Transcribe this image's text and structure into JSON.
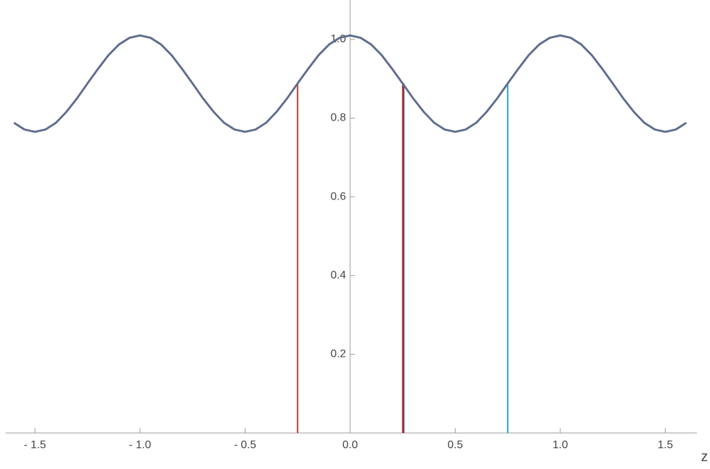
{
  "chart_data": {
    "type": "line",
    "x_label": "z",
    "x": [
      -1.6,
      -1.55,
      -1.5,
      -1.45,
      -1.4,
      -1.35,
      -1.3,
      -1.25,
      -1.2,
      -1.15,
      -1.1,
      -1.05,
      -1.0,
      -0.95,
      -0.9,
      -0.85,
      -0.8,
      -0.75,
      -0.7,
      -0.65,
      -0.6,
      -0.55,
      -0.5,
      -0.45,
      -0.4,
      -0.35,
      -0.3,
      -0.25,
      -0.2,
      -0.15,
      -0.1,
      -0.05,
      0,
      0.05,
      0.1,
      0.15,
      0.2,
      0.25,
      0.3,
      0.35,
      0.4,
      0.45,
      0.5,
      0.55,
      0.6,
      0.65,
      0.7,
      0.75,
      0.8,
      0.85,
      0.9,
      0.95,
      1.0,
      1.05,
      1.1,
      1.15,
      1.2,
      1.25,
      1.3,
      1.35,
      1.4,
      1.45,
      1.5,
      1.55,
      1.6
    ],
    "series": [
      {
        "color": "#5e6d8e",
        "values": [
          0.788,
          0.771,
          0.765,
          0.771,
          0.788,
          0.816,
          0.85,
          0.888,
          0.925,
          0.96,
          0.987,
          1.004,
          1.01,
          1.004,
          0.987,
          0.96,
          0.925,
          0.888,
          0.85,
          0.816,
          0.788,
          0.771,
          0.765,
          0.771,
          0.788,
          0.816,
          0.85,
          0.888,
          0.925,
          0.96,
          0.987,
          1.004,
          1.01,
          1.004,
          0.987,
          0.96,
          0.925,
          0.888,
          0.85,
          0.816,
          0.788,
          0.771,
          0.765,
          0.771,
          0.788,
          0.816,
          0.85,
          0.888,
          0.925,
          0.96,
          0.987,
          1.004,
          1.01,
          1.004,
          0.987,
          0.96,
          0.925,
          0.888,
          0.85,
          0.816,
          0.788,
          0.771,
          0.765,
          0.771,
          0.788
        ]
      }
    ],
    "vlines": [
      {
        "x": -0.25,
        "value": 0.888,
        "color": "#c8332b"
      },
      {
        "x": 0.255,
        "value": 0.888,
        "color": "#3d4a6b"
      },
      {
        "x": 0.25,
        "value": 0.888,
        "color": "#c8332b"
      },
      {
        "x": 0.75,
        "value": 0.888,
        "color": "#1fa0cf"
      }
    ],
    "xlim": [
      -1.64,
      1.65
    ],
    "ylim": [
      0,
      1.1
    ],
    "xticks": [
      {
        "value": -1.5,
        "label": "- 1.5"
      },
      {
        "value": -1.0,
        "label": "- 1.0"
      },
      {
        "value": -0.5,
        "label": "- 0.5"
      },
      {
        "value": 0,
        "label": "0.0"
      },
      {
        "value": 0.5,
        "label": "0.5"
      },
      {
        "value": 1.0,
        "label": "1.0"
      },
      {
        "value": 1.5,
        "label": "1.5"
      }
    ],
    "yticks": [
      0.2,
      0.4,
      0.6,
      0.8,
      {
        "value": 1.0,
        "label": "1.0"
      }
    ]
  }
}
